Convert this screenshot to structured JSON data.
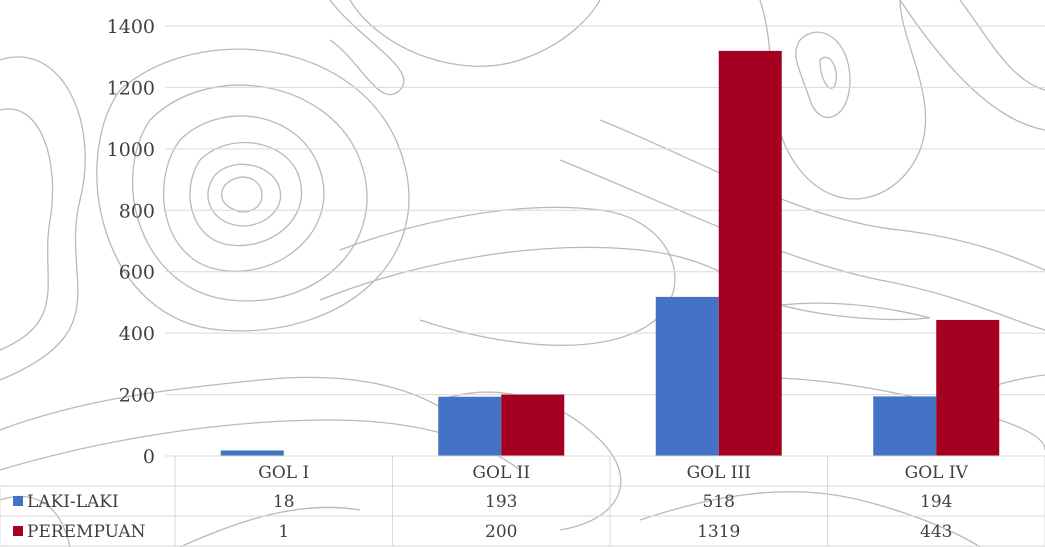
{
  "chart_data": {
    "type": "bar",
    "categories": [
      "GOL I",
      "GOL II",
      "GOL III",
      "GOL IV"
    ],
    "series": [
      {
        "name": "LAKI-LAKI",
        "values": [
          18,
          193,
          518,
          194
        ],
        "color": "#4472C4"
      },
      {
        "name": "PEREMPUAN",
        "values": [
          1,
          200,
          1319,
          443
        ],
        "color": "#A50021"
      }
    ],
    "y_ticks": [
      "0",
      "200",
      "400",
      "600",
      "800",
      "1000",
      "1200",
      "1400"
    ],
    "ylim": [
      0,
      1400
    ],
    "grid": true,
    "legend": "data-table",
    "data_table": {
      "rows": [
        {
          "label": "LAKI-LAKI",
          "cells": [
            "18",
            "193",
            "518",
            "194"
          ]
        },
        {
          "label": "PEREMPUAN",
          "cells": [
            "1",
            "200",
            "1319",
            "443"
          ]
        }
      ]
    }
  }
}
